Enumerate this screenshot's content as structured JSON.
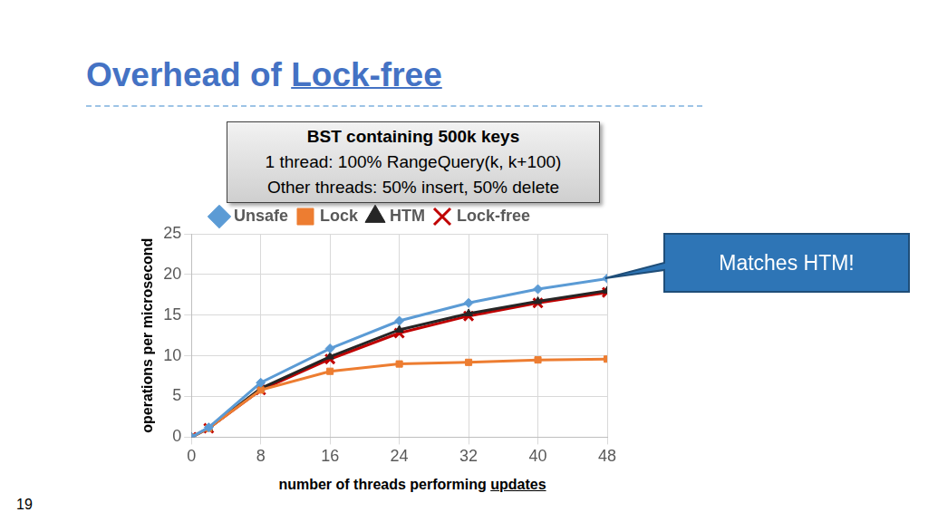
{
  "slide": {
    "title_prefix": "Overhead of ",
    "title_link": "Lock-free",
    "page_number": 19
  },
  "chart_data": {
    "type": "line",
    "title": "BST containing 500k keys",
    "subtitle": [
      "1 thread: 100% RangeQuery(k, k+100)",
      "Other threads: 50% insert, 50% delete"
    ],
    "x_label": "number of threads performing updates",
    "y_label": "operations per microsecond",
    "annotations": [
      "Matches HTM!"
    ],
    "x": [
      0,
      2,
      8,
      16,
      24,
      32,
      40,
      48
    ],
    "series": [
      {
        "name": "Unsafe",
        "color": "#5b9bd5",
        "marker": "diamond",
        "values": [
          0,
          1.2,
          6.7,
          10.9,
          14.3,
          16.5,
          18.2,
          19.5
        ]
      },
      {
        "name": "Lock",
        "color": "#ed7d31",
        "marker": "square",
        "values": [
          0,
          1.1,
          5.8,
          8.1,
          9.0,
          9.2,
          9.5,
          9.6
        ]
      },
      {
        "name": "HTM",
        "color": "#262626",
        "marker": "triangle",
        "values": [
          0,
          1.1,
          6.0,
          9.9,
          13.2,
          15.2,
          16.7,
          18.0
        ]
      },
      {
        "name": "Lock-free",
        "color": "#c00000",
        "marker": "x",
        "values": [
          0,
          1.1,
          5.8,
          9.6,
          12.8,
          14.9,
          16.5,
          17.8
        ]
      }
    ],
    "xlim": [
      0,
      48
    ],
    "xticks": [
      0,
      8,
      16,
      24,
      32,
      40,
      48
    ],
    "ylim": [
      0,
      25
    ],
    "yticks": [
      0,
      5,
      10,
      15,
      20,
      25
    ],
    "grid": true,
    "legend": "top"
  }
}
